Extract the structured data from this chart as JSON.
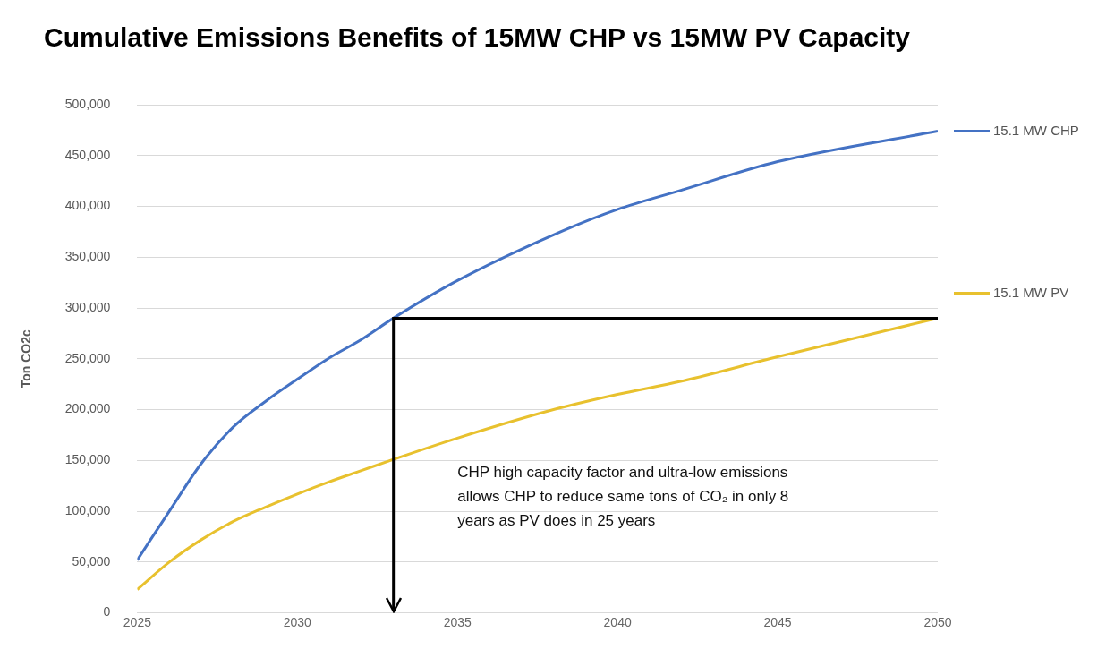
{
  "chart_data": {
    "type": "line",
    "title": "Cumulative Emissions Benefits of 15MW CHP vs 15MW PV Capacity",
    "ylabel": "Ton CO2c",
    "x": [
      2025,
      2026,
      2027,
      2028,
      2029,
      2030,
      2031,
      2032,
      2033,
      2035,
      2038,
      2040,
      2042,
      2045,
      2050
    ],
    "series": [
      {
        "name": "15.1 MW CHP",
        "color": "#4472c4",
        "values": [
          52000,
          100000,
          147000,
          183000,
          208000,
          230000,
          251000,
          269000,
          290000,
          327000,
          372000,
          397000,
          416000,
          444000,
          474000
        ]
      },
      {
        "name": "15.1 MW PV",
        "color": "#e8c12e",
        "values": [
          23000,
          50000,
          72000,
          90000,
          104000,
          117000,
          129000,
          140000,
          151000,
          172000,
          200000,
          215000,
          228000,
          252000,
          290000
        ]
      }
    ],
    "xlim": [
      2025,
      2050
    ],
    "xticks": [
      2025,
      2030,
      2035,
      2040,
      2045,
      2050
    ],
    "ylim": [
      0,
      500000
    ],
    "yticks": [
      0,
      {
        "value": 50000,
        "label": "50,000"
      },
      {
        "value": 100000,
        "label": "100,000"
      },
      {
        "value": 150000,
        "label": "150,000"
      },
      {
        "value": 200000,
        "label": "200,000"
      },
      {
        "value": 250000,
        "label": "250,000"
      },
      {
        "value": 300000,
        "label": "300,000"
      },
      {
        "value": 350000,
        "label": "350,000"
      },
      {
        "value": 400000,
        "label": "400,000"
      },
      {
        "value": 450000,
        "label": "450,000"
      },
      {
        "value": 500000,
        "label": "500,000"
      }
    ],
    "grid": "y",
    "legend": "right",
    "marker": "none",
    "line_style": "solid",
    "ref_lines": [
      {
        "axis": "y",
        "value": 290000,
        "color": "#000000"
      },
      {
        "axis": "x",
        "value": 2033,
        "color": "#000000"
      }
    ],
    "annotations": [
      "CHP high capacity factor and ultra-low emissions allows CHP to reduce same tons of CO₂ in only 8 years as PV does in 25 years"
    ]
  }
}
